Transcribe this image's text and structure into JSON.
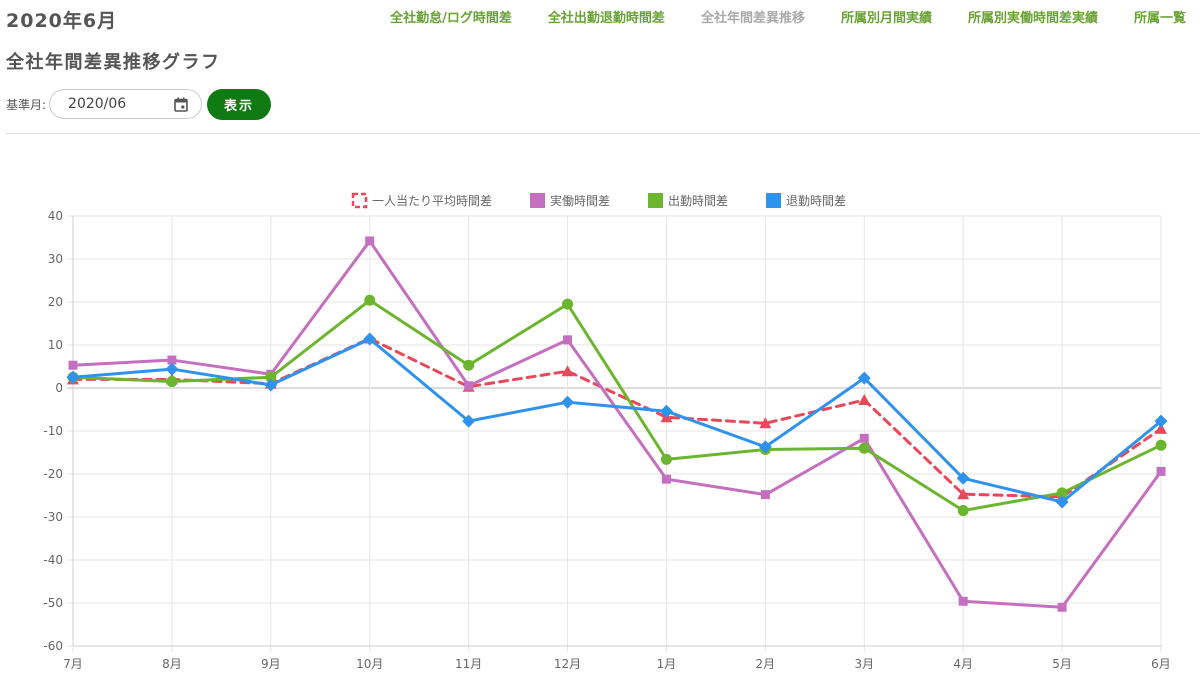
{
  "header": {
    "title": "2020年6月",
    "subtitle": "全社年間差異推移グラフ"
  },
  "nav": {
    "items": [
      {
        "label": "全社勤怠/ログ時間差",
        "current": false
      },
      {
        "label": "全社出勤退勤時間差",
        "current": false
      },
      {
        "label": "全社年間差異推移",
        "current": true
      },
      {
        "label": "所属別月間実績",
        "current": false
      },
      {
        "label": "所属別実働時間差実績",
        "current": false
      },
      {
        "label": "所属一覧",
        "current": false
      }
    ]
  },
  "filter": {
    "label": "基準月:",
    "month_value": "2020/06",
    "calendar_icon": "calendar-icon",
    "show_button": "表示"
  },
  "colors": {
    "accent_green": "#0f7a12",
    "nav_green": "#6aa335"
  },
  "chart_data": {
    "type": "line",
    "categories": [
      "7月",
      "8月",
      "9月",
      "10月",
      "11月",
      "12月",
      "1月",
      "2月",
      "3月",
      "4月",
      "5月",
      "6月"
    ],
    "ylim": [
      -60,
      40
    ],
    "yticks": [
      40,
      30,
      20,
      10,
      0,
      -10,
      -20,
      -30,
      -40,
      -50,
      -60
    ],
    "grid": true,
    "legend_position": "top",
    "series": [
      {
        "name": "一人当たり平均時間差",
        "color": "#e8485a",
        "dashed": true,
        "marker": "triangle",
        "values": [
          2,
          2,
          1,
          11.5,
          0.3,
          3.9,
          -6.8,
          -8.2,
          -2.8,
          -24.7,
          -25.3,
          -9.5
        ]
      },
      {
        "name": "実働時間差",
        "color": "#c56fc0",
        "dashed": false,
        "marker": "square",
        "values": [
          5.3,
          6.5,
          3.2,
          34.2,
          0.5,
          11.2,
          -21.2,
          -24.8,
          -11.7,
          -49.6,
          -51,
          -19.4
        ]
      },
      {
        "name": "出勤時間差",
        "color": "#6cb52e",
        "dashed": false,
        "marker": "circle",
        "values": [
          2.5,
          1.5,
          2.5,
          20.4,
          5.3,
          19.5,
          -16.6,
          -14.3,
          -14,
          -28.5,
          -24.4,
          -13.3
        ]
      },
      {
        "name": "退勤時間差",
        "color": "#2f93ee",
        "dashed": false,
        "marker": "diamond",
        "values": [
          2.5,
          4.4,
          0.7,
          11.4,
          -7.7,
          -3.3,
          -5.4,
          -13.7,
          2.3,
          -21,
          -26.5,
          -7.7
        ]
      }
    ]
  }
}
